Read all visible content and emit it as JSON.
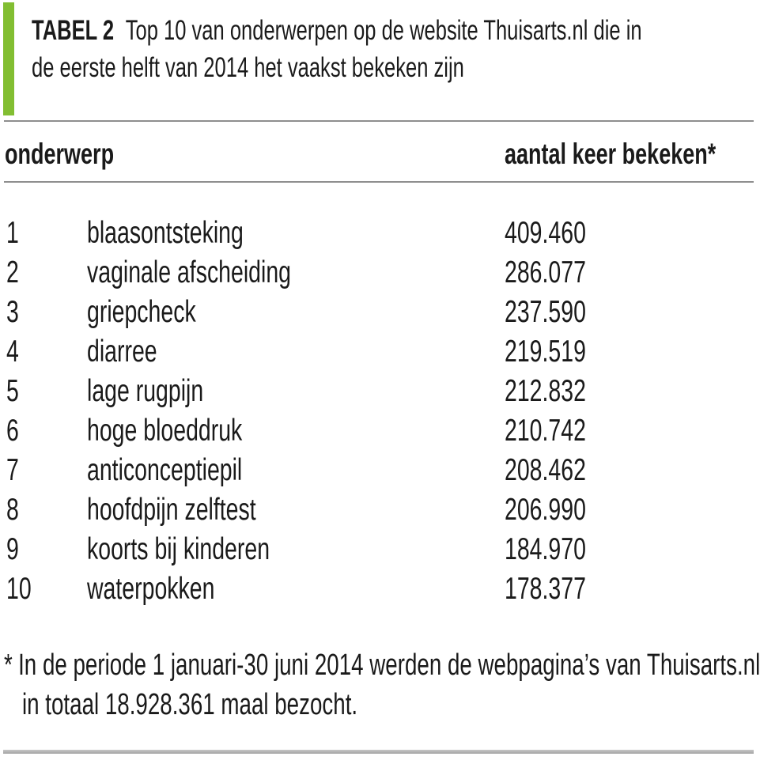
{
  "page": {
    "kind": "journal-table-figure",
    "language": "nl"
  },
  "colors": {
    "accent_green": "#82be32",
    "text": "#1a1a1a",
    "rule_gray": "#8e8e8e",
    "bottom_bar_gray": "#a4a4a4",
    "background": "#ffffff"
  },
  "header": {
    "tag": "TABEL 2",
    "title_line1": "Top 10 van onderwerpen op de website Thuisarts.nl die in",
    "title_line2": "de eerste helft van 2014 het vaakst bekeken zijn"
  },
  "table": {
    "columns": [
      {
        "label": "onderwerp"
      },
      {
        "label": "aantal keer bekeken*"
      }
    ],
    "rows": [
      {
        "rank": "1",
        "topic": "blaasontsteking",
        "views": "409.460"
      },
      {
        "rank": "2",
        "topic": "vaginale afscheiding",
        "views": "286.077"
      },
      {
        "rank": "3",
        "topic": "griepcheck",
        "views": "237.590"
      },
      {
        "rank": "4",
        "topic": "diarree",
        "views": "219.519"
      },
      {
        "rank": "5",
        "topic": "lage rugpijn",
        "views": "212.832"
      },
      {
        "rank": "6",
        "topic": "hoge bloeddruk",
        "views": "210.742"
      },
      {
        "rank": "7",
        "topic": "anticonceptiepil",
        "views": "208.462"
      },
      {
        "rank": "8",
        "topic": "hoofdpijn zelftest",
        "views": "206.990"
      },
      {
        "rank": "9",
        "topic": "koorts bij kinderen",
        "views": "184.970"
      },
      {
        "rank": "10",
        "topic": "waterpokken",
        "views": "178.377"
      }
    ]
  },
  "footnote": {
    "marker": "*",
    "line1": "In de periode 1 januari-30 juni 2014 werden de webpagina’s van Thuisarts.nl",
    "line2": "in totaal 18.928.361 maal bezocht."
  },
  "chart_data": {
    "type": "table",
    "title": "TABEL 2 Top 10 van onderwerpen op de website Thuisarts.nl die in de eerste helft van 2014 het vaakst bekeken zijn",
    "columns": [
      "onderwerp",
      "aantal keer bekeken*"
    ],
    "categories": [
      "blaasontsteking",
      "vaginale afscheiding",
      "griepcheck",
      "diarree",
      "lage rugpijn",
      "hoge bloeddruk",
      "anticonceptiepil",
      "hoofdpijn zelftest",
      "koorts bij kinderen",
      "waterpokken"
    ],
    "values": [
      409460,
      286077,
      237590,
      219519,
      212832,
      210742,
      208462,
      206990,
      184970,
      178377
    ],
    "footnote": "* In de periode 1 januari-30 juni 2014 werden de webpagina’s van Thuisarts.nl in totaal 18.928.361 maal bezocht."
  }
}
